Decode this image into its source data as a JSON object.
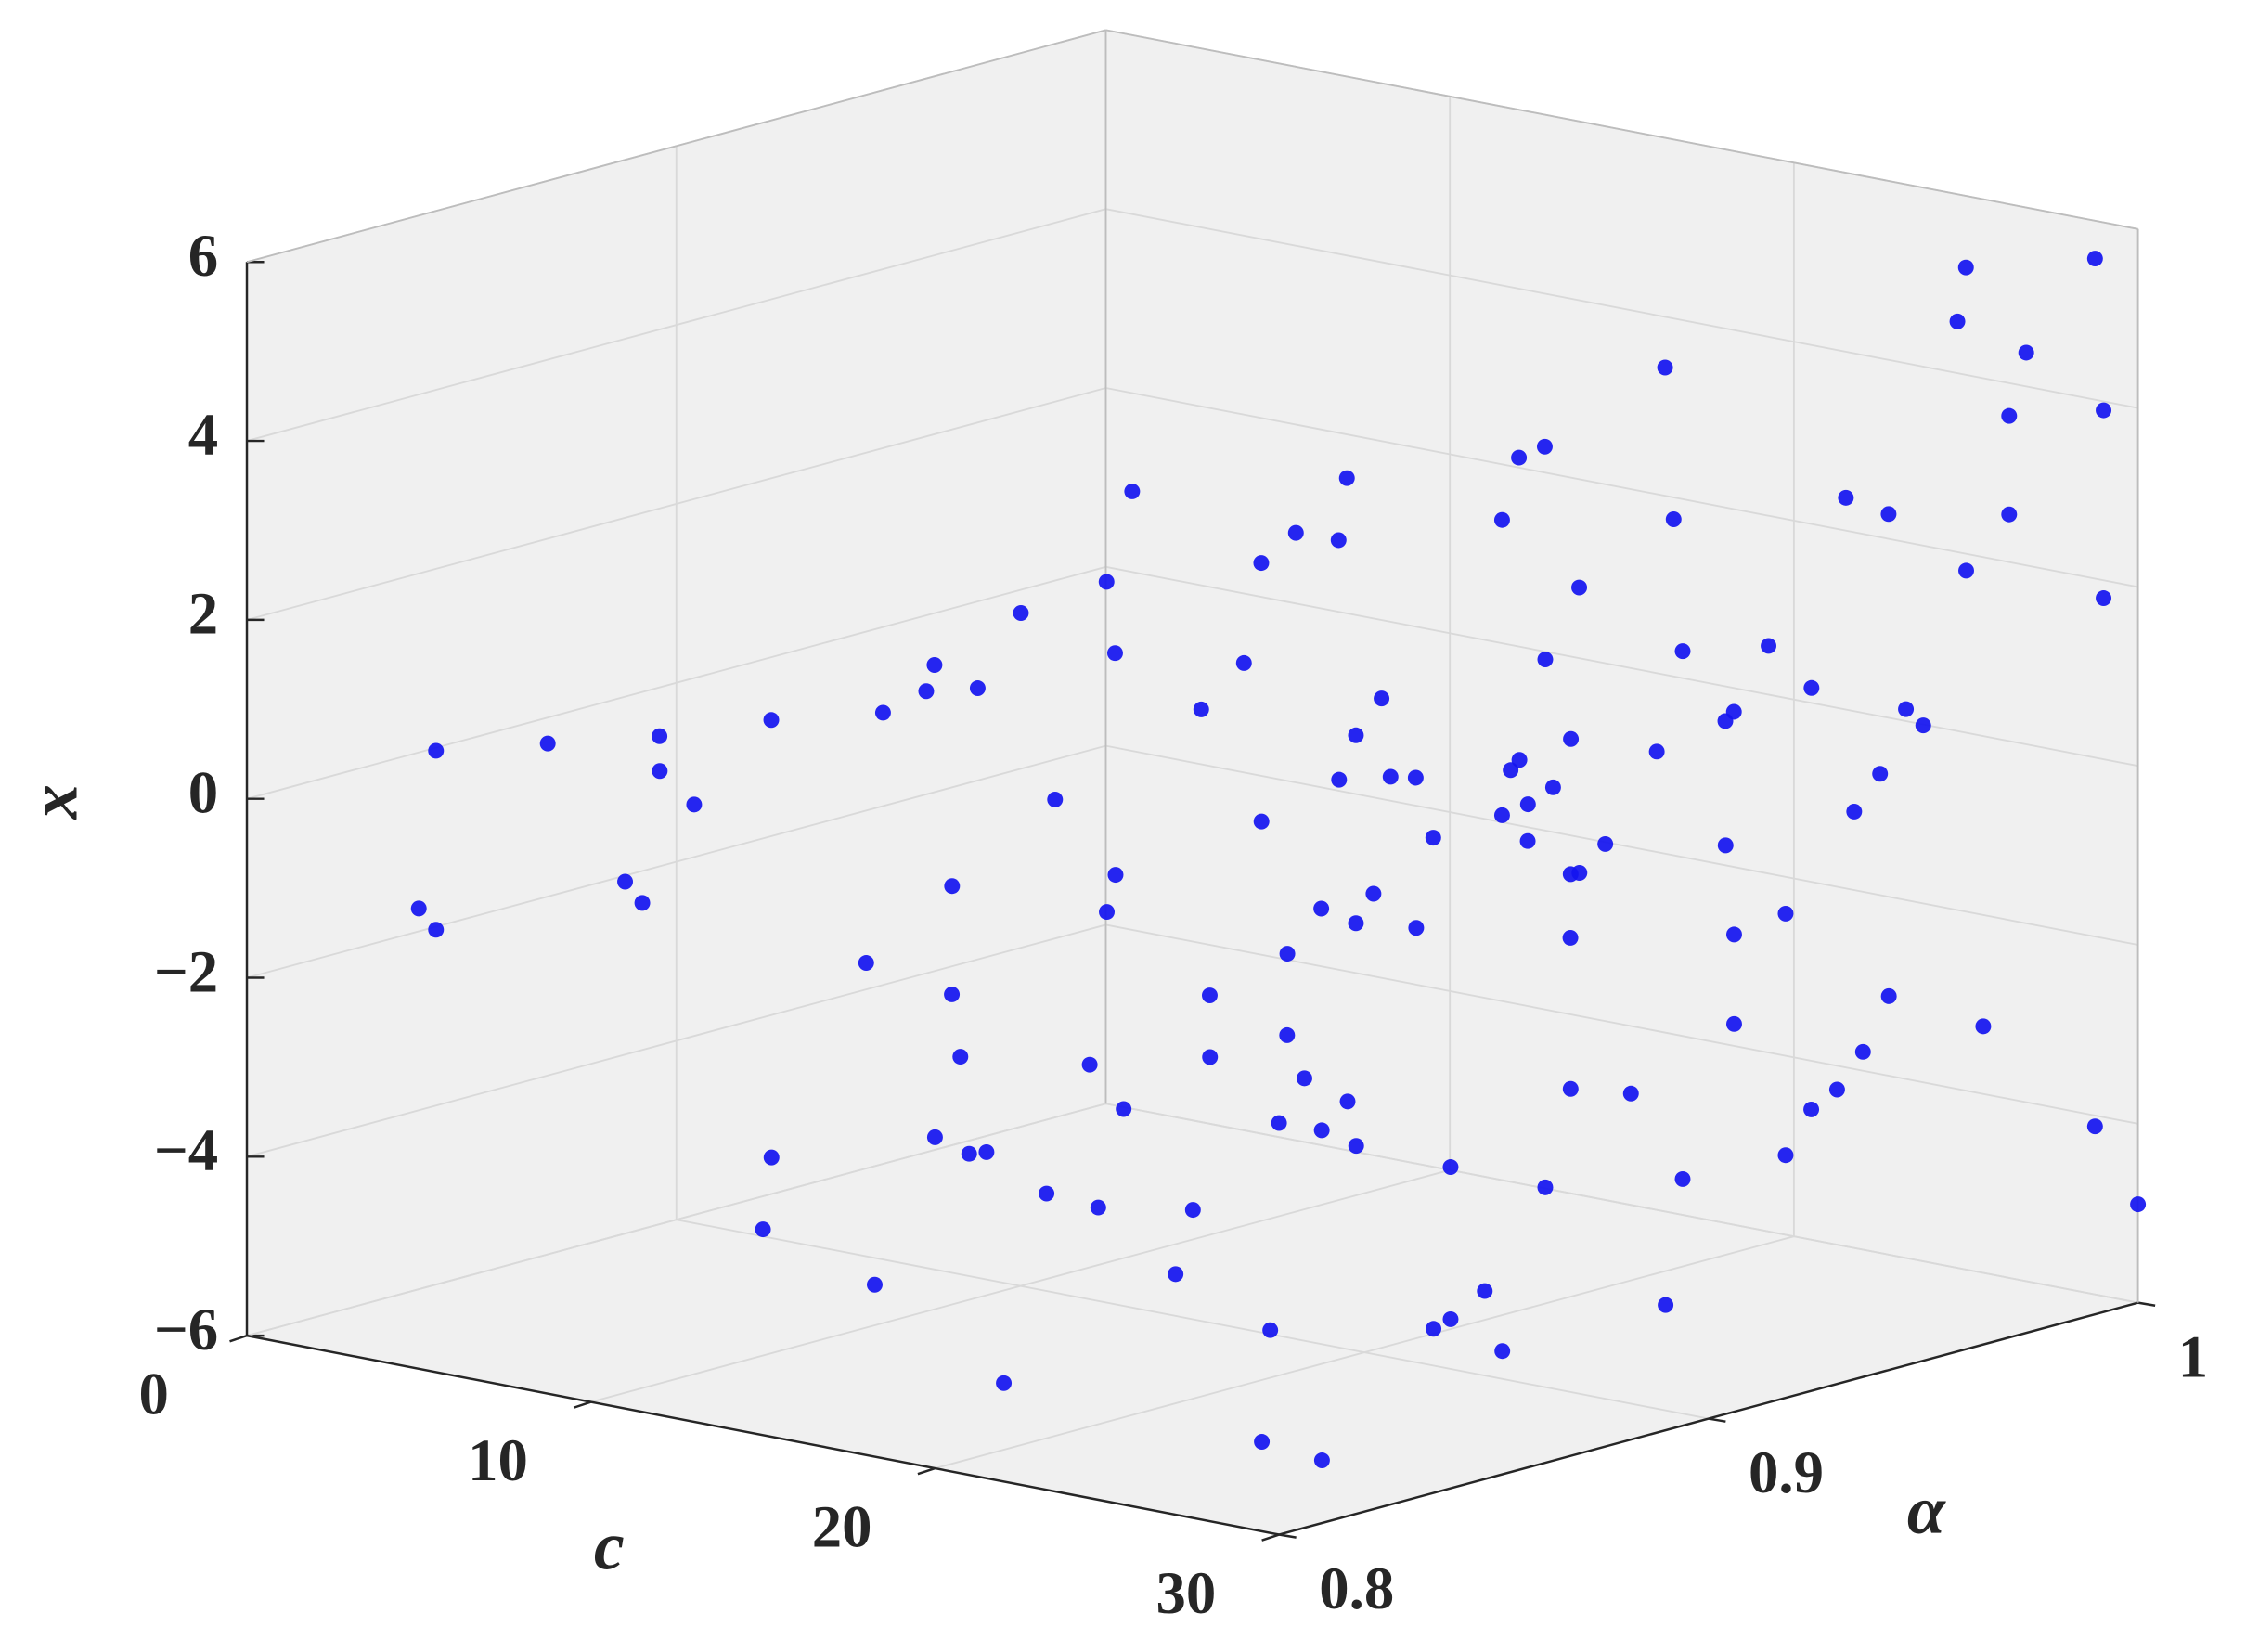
{
  "chart_data": {
    "type": "scatter3d",
    "xlabel": "c",
    "ylabel": "α",
    "zlabel": "x",
    "xlim": [
      0,
      30
    ],
    "ylim": [
      0.8,
      1
    ],
    "zlim": [
      -6,
      6
    ],
    "xticks": [
      0,
      10,
      20,
      30
    ],
    "yticks": [
      0.8,
      0.9,
      1
    ],
    "zticks": [
      {
        "value": -6,
        "label": "−6"
      },
      {
        "value": -4,
        "label": "−4"
      },
      {
        "value": -2,
        "label": "−2"
      },
      0,
      2,
      4,
      6
    ],
    "grid": true,
    "series": [
      {
        "color": "#1414f0",
        "x": [
          3,
          5,
          7,
          9,
          2.5,
          3,
          6,
          6.5,
          12,
          14,
          16,
          18,
          20,
          22,
          24,
          26,
          28,
          30,
          13,
          15,
          17,
          19,
          21,
          23,
          25,
          27,
          29,
          30,
          12,
          15,
          18,
          21,
          24,
          27,
          30,
          14,
          20,
          26,
          16,
          22,
          28,
          13,
          19,
          25,
          30,
          17,
          23,
          29,
          18,
          20,
          22,
          24,
          26,
          28,
          21,
          23,
          25,
          27,
          30,
          29,
          28,
          27,
          26,
          25,
          24,
          23,
          22,
          21,
          19,
          17,
          15,
          13,
          30,
          29,
          28,
          27,
          26,
          25,
          20,
          22,
          24,
          26,
          28,
          30,
          16,
          18,
          14,
          12,
          24,
          25,
          26,
          27,
          28,
          29,
          30,
          23,
          22,
          21,
          15,
          17,
          19,
          21,
          23,
          25,
          27,
          29,
          30,
          30,
          26,
          27,
          28,
          29,
          24,
          25,
          20,
          21,
          18,
          19,
          11,
          10,
          12,
          13,
          14,
          16,
          27,
          29,
          22,
          29.5
        ],
        "y": [
          0.82,
          0.83,
          0.84,
          0.85,
          0.82,
          0.82,
          0.84,
          0.84,
          0.8,
          0.81,
          0.83,
          0.8,
          0.82,
          0.84,
          0.81,
          0.85,
          0.83,
          0.8,
          0.86,
          0.88,
          0.85,
          0.87,
          0.89,
          0.86,
          0.88,
          0.9,
          0.87,
          0.89,
          0.91,
          0.93,
          0.92,
          0.94,
          0.9,
          0.93,
          0.95,
          0.96,
          0.97,
          0.95,
          0.98,
          0.97,
          0.99,
          1.0,
          0.98,
          1.0,
          0.99,
          0.96,
          0.99,
          1.0,
          0.82,
          0.84,
          0.86,
          0.88,
          0.9,
          0.92,
          0.94,
          0.96,
          0.98,
          0.85,
          0.81,
          0.86,
          0.91,
          0.96,
          0.83,
          0.88,
          0.93,
          0.98,
          0.87,
          0.92,
          0.95,
          0.9,
          0.85,
          0.8,
          0.97,
          0.94,
          0.91,
          0.88,
          0.99,
          0.82,
          0.8,
          0.82,
          0.85,
          0.89,
          0.93,
          0.97,
          0.84,
          0.88,
          0.92,
          0.96,
          0.9,
          0.91,
          0.92,
          0.93,
          0.94,
          0.95,
          0.96,
          0.91,
          0.9,
          0.89,
          0.8,
          0.81,
          0.82,
          0.83,
          0.84,
          0.85,
          0.86,
          0.87,
          0.99,
          1.0,
          0.95,
          0.97,
          0.98,
          1.0,
          0.99,
          0.97,
          0.95,
          0.93,
          0.91,
          0.89,
          0.86,
          0.88,
          0.87,
          0.9,
          0.89,
          0.86,
          0.84,
          0.83,
          0.8,
          0.8
        ],
        "z": [
          0.5,
          0.6,
          0.7,
          0.9,
          -1.3,
          -1.5,
          -1.0,
          -1.2,
          1.2,
          -3.1,
          2.0,
          -0.5,
          3.3,
          -4.2,
          0.8,
          -2.6,
          1.9,
          -1.4,
          -2.0,
          2.5,
          -3.8,
          1.5,
          -1.0,
          3.9,
          -3.3,
          0.2,
          2.8,
          -4.6,
          2.9,
          -1.8,
          0.9,
          -3.5,
          3.6,
          -2.2,
          1.1,
          -0.8,
          4.1,
          -4.0,
          -2.7,
          0.4,
          4.6,
          -1.5,
          2.2,
          5.2,
          -3.9,
          3.0,
          -0.9,
          1.8,
          0.1,
          -0.3,
          0.6,
          -0.7,
          1.3,
          0.0,
          -1.1,
          0.5,
          -0.2,
          1.6,
          -5.3,
          -4.8,
          -3.6,
          -2.9,
          -4.4,
          -5.0,
          -3.2,
          -4.1,
          -2.4,
          -5.5,
          3.4,
          2.6,
          1.7,
          0.9,
          4.3,
          3.7,
          2.3,
          1.4,
          4.8,
          -3.0,
          -2.3,
          -1.6,
          -0.6,
          0.7,
          2.1,
          3.2,
          -3.3,
          -1.9,
          1.0,
          2.4,
          0.3,
          -0.4,
          0.9,
          -1.2,
          1.5,
          -2.0,
          2.7,
          0.6,
          -0.1,
          1.1,
          -3.7,
          -4.3,
          -2.8,
          -3.4,
          -1.7,
          -2.5,
          -4.7,
          -3.1,
          5.8,
          -4.9,
          -1.3,
          0.8,
          -2.8,
          3.9,
          2.5,
          -3.6,
          1.9,
          -0.6,
          2.8,
          -2.4,
          1.0,
          1.2,
          -2.9,
          -3.8,
          1.5,
          0.4,
          -1.9,
          0.7,
          -4.9,
          -5.0
        ]
      }
    ]
  }
}
